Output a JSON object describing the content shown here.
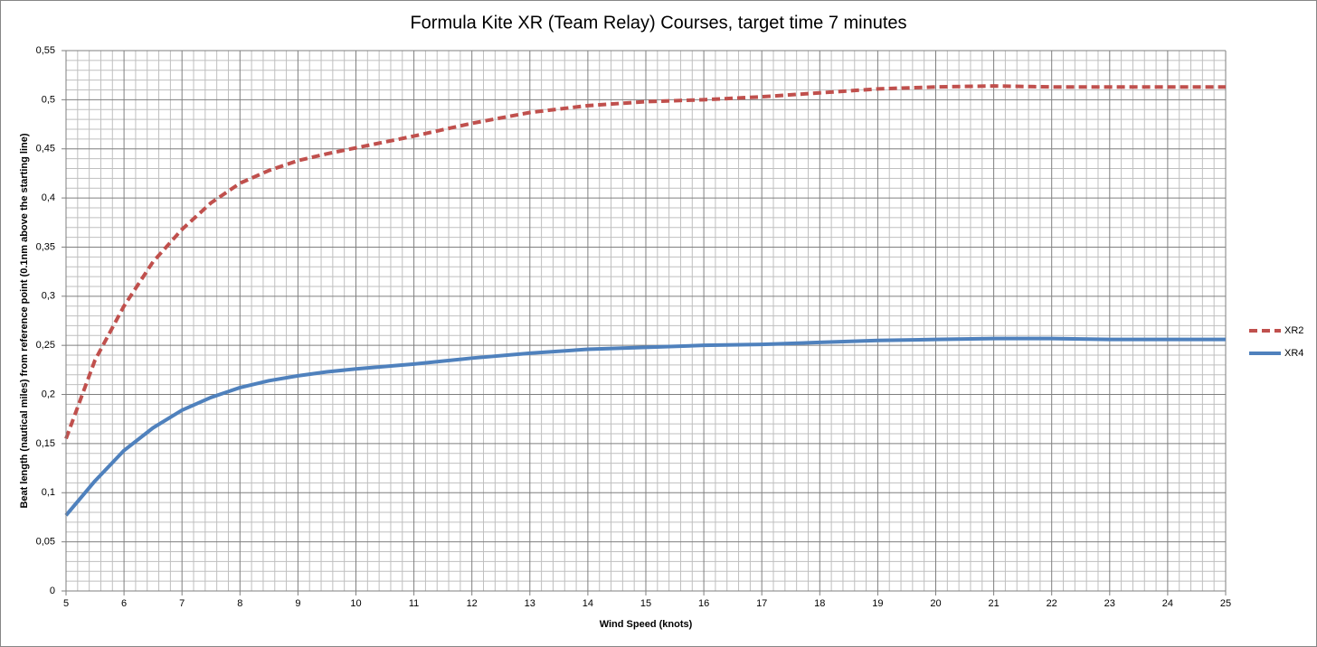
{
  "chart_data": {
    "type": "line",
    "title": "Formula Kite XR (Team Relay) Courses, target time 7 minutes",
    "x_label": "Wind Speed (knots)",
    "y_label": "Beat length (nautical miles) from reference point (0.1nm above the starting line)",
    "x": [
      5,
      5.5,
      6,
      6.5,
      7,
      7.5,
      8,
      8.5,
      9,
      9.5,
      10,
      11,
      12,
      13,
      14,
      15,
      16,
      17,
      18,
      19,
      20,
      21,
      22,
      23,
      24,
      25
    ],
    "series": [
      {
        "name": "XR2",
        "color": "#c0504d",
        "style": "dashed",
        "values": [
          0.155,
          0.235,
          0.29,
          0.335,
          0.368,
          0.395,
          0.415,
          0.428,
          0.438,
          0.445,
          0.451,
          0.463,
          0.476,
          0.487,
          0.494,
          0.498,
          0.5,
          0.503,
          0.507,
          0.511,
          0.513,
          0.514,
          0.513,
          0.513,
          0.513,
          0.513
        ]
      },
      {
        "name": "XR4",
        "color": "#4f81bd",
        "style": "solid",
        "values": [
          0.077,
          0.112,
          0.143,
          0.166,
          0.184,
          0.197,
          0.207,
          0.214,
          0.219,
          0.223,
          0.226,
          0.231,
          0.237,
          0.242,
          0.246,
          0.248,
          0.25,
          0.251,
          0.253,
          0.255,
          0.256,
          0.257,
          0.257,
          0.256,
          0.256,
          0.256
        ]
      }
    ],
    "xlim": [
      5,
      25
    ],
    "xticks": [
      5,
      6,
      7,
      8,
      9,
      10,
      11,
      12,
      13,
      14,
      15,
      16,
      17,
      18,
      19,
      20,
      21,
      22,
      23,
      24,
      25
    ],
    "ylim": [
      0,
      0.55
    ],
    "yticks": [
      0,
      {
        "value": 0.05,
        "label": "0,05"
      },
      {
        "value": 0.1,
        "label": "0,1"
      },
      {
        "value": 0.15,
        "label": "0,15"
      },
      {
        "value": 0.2,
        "label": "0,2"
      },
      {
        "value": 0.25,
        "label": "0,25"
      },
      {
        "value": 0.3,
        "label": "0,3"
      },
      {
        "value": 0.35,
        "label": "0,35"
      },
      {
        "value": 0.4,
        "label": "0,4"
      },
      {
        "value": 0.45,
        "label": "0,45"
      },
      {
        "value": 0.5,
        "label": "0,5"
      },
      {
        "value": 0.55,
        "label": "0,55"
      }
    ],
    "grid": true,
    "minor_grid": true,
    "legend": "right"
  }
}
